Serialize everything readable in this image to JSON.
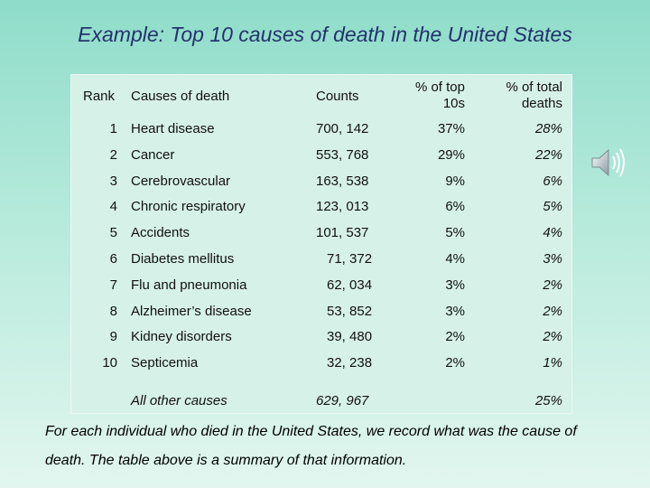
{
  "title": "Example: Top 10 causes of death in the United States",
  "table": {
    "headers": {
      "rank": "Rank",
      "cause": "Causes of death",
      "counts": "Counts",
      "pct_top_line1": "% of top",
      "pct_top_line2": "10s",
      "pct_total_line1": "% of total",
      "pct_total_line2": "deaths"
    },
    "rows": [
      {
        "rank": "1",
        "cause": "Heart disease",
        "count": "700, 142",
        "pct_top": "37%",
        "pct_total": "28%"
      },
      {
        "rank": "2",
        "cause": "Cancer",
        "count": "553, 768",
        "pct_top": "29%",
        "pct_total": "22%"
      },
      {
        "rank": "3",
        "cause": "Cerebrovascular",
        "count": "163, 538",
        "pct_top": "9%",
        "pct_total": "6%"
      },
      {
        "rank": "4",
        "cause": "Chronic respiratory",
        "count": "123, 013",
        "pct_top": "6%",
        "pct_total": "5%"
      },
      {
        "rank": "5",
        "cause": "Accidents",
        "count": "101, 537",
        "pct_top": "5%",
        "pct_total": "4%"
      },
      {
        "rank": "6",
        "cause": "Diabetes mellitus",
        "count": "71, 372",
        "pct_top": "4%",
        "pct_total": "3%"
      },
      {
        "rank": "7",
        "cause": "Flu and pneumonia",
        "count": "62, 034",
        "pct_top": "3%",
        "pct_total": "2%"
      },
      {
        "rank": "8",
        "cause": "Alzheimer’s disease",
        "count": "53, 852",
        "pct_top": "3%",
        "pct_total": "2%"
      },
      {
        "rank": "9",
        "cause": "Kidney disorders",
        "count": "39, 480",
        "pct_top": "2%",
        "pct_total": "2%"
      },
      {
        "rank": "10",
        "cause": "Septicemia",
        "count": "32, 238",
        "pct_top": "2%",
        "pct_total": "1%"
      }
    ],
    "other": {
      "cause": "All other causes",
      "count": "629, 967",
      "pct_total": "25%"
    }
  },
  "note": "For each individual who died in the United States, we record what was the cause of death. The table above is a summary of that information.",
  "icons": {
    "audio": "speaker-icon"
  },
  "colors": {
    "title": "#22336b",
    "background_top": "#8fdcca",
    "background_bottom": "#e2f6ef"
  }
}
